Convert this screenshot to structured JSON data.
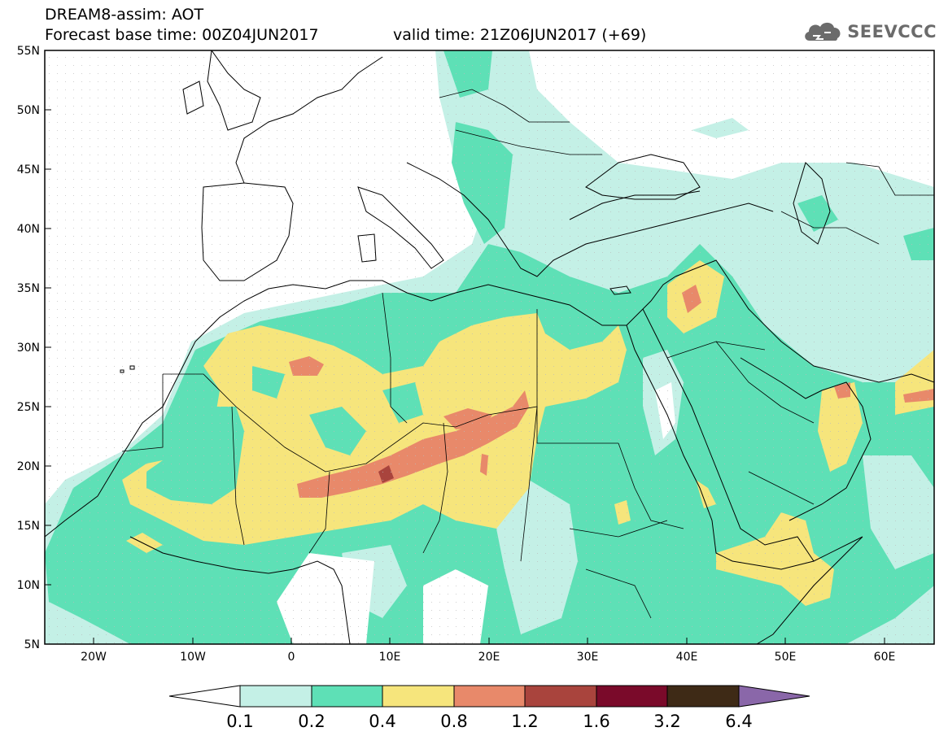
{
  "header": {
    "model_line": "DREAM8-assim: AOT",
    "base_time_line": "Forecast base time: 00Z04JUN2017",
    "valid_time_line": "valid time: 21Z06JUN2017 (+69)"
  },
  "logo": {
    "icon": "cloud-icon",
    "text": "SEEVCCC"
  },
  "axes": {
    "lon_labels": [
      "20W",
      "10W",
      "0",
      "10E",
      "20E",
      "30E",
      "40E",
      "50E",
      "60E"
    ],
    "lat_labels": [
      "55N",
      "50N",
      "45N",
      "40N",
      "35N",
      "30N",
      "25N",
      "20N",
      "15N",
      "10N",
      "5N"
    ]
  },
  "colorbar": {
    "labels": [
      "0.1",
      "0.2",
      "0.4",
      "0.8",
      "1.2",
      "1.6",
      "3.2",
      "6.4"
    ],
    "colors": [
      "#ffffff",
      "#c4f0e6",
      "#5ee0b6",
      "#f6e57c",
      "#e8896a",
      "#a9443d",
      "#7a0a2a",
      "#3e2a16",
      "#8a67a9"
    ]
  }
}
